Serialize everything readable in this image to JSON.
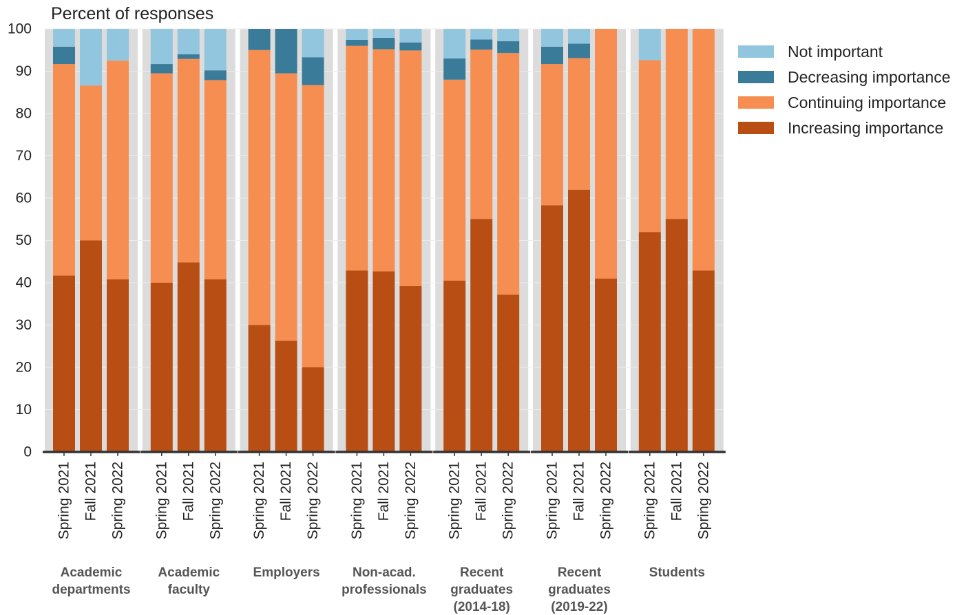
{
  "chart_data": {
    "type": "bar",
    "stacked": true,
    "ylabel": "Percent of responses",
    "ylim": [
      0,
      100
    ],
    "yticks": [
      0,
      10,
      20,
      30,
      40,
      50,
      60,
      70,
      80,
      90,
      100
    ],
    "grid": true,
    "legend_position": "top-right",
    "series": [
      {
        "name": "Not important",
        "color": "#92c5de"
      },
      {
        "name": "Decreasing importance",
        "color": "#3b7b9a"
      },
      {
        "name": "Continuing importance",
        "color": "#f68e51"
      },
      {
        "name": "Increasing importance",
        "color": "#b94e14"
      }
    ],
    "groups": [
      {
        "label": [
          "Academic",
          "departments"
        ],
        "bars": [
          {
            "label": "Spring 2021",
            "values": {
              "Increasing importance": 41.7,
              "Continuing importance": 50.0,
              "Decreasing importance": 4.1,
              "Not important": 4.2
            }
          },
          {
            "label": "Fall 2021",
            "values": {
              "Increasing importance": 50.0,
              "Continuing importance": 36.6,
              "Decreasing importance": 0,
              "Not important": 13.4
            }
          },
          {
            "label": "Spring 2022",
            "values": {
              "Increasing importance": 40.8,
              "Continuing importance": 51.7,
              "Decreasing importance": 0,
              "Not important": 7.5
            }
          }
        ]
      },
      {
        "label": [
          "Academic",
          "faculty"
        ],
        "bars": [
          {
            "label": "Spring 2021",
            "values": {
              "Increasing importance": 40.0,
              "Continuing importance": 49.5,
              "Decreasing importance": 2.2,
              "Not important": 8.3
            }
          },
          {
            "label": "Fall 2021",
            "values": {
              "Increasing importance": 44.8,
              "Continuing importance": 48.1,
              "Decreasing importance": 1.1,
              "Not important": 6.0
            }
          },
          {
            "label": "Spring 2022",
            "values": {
              "Increasing importance": 40.8,
              "Continuing importance": 47.1,
              "Decreasing importance": 2.3,
              "Not important": 9.8
            }
          }
        ]
      },
      {
        "label": [
          "Employers"
        ],
        "bars": [
          {
            "label": "Spring 2021",
            "values": {
              "Increasing importance": 30.0,
              "Continuing importance": 65.0,
              "Decreasing importance": 5.0,
              "Not important": 0
            }
          },
          {
            "label": "Fall 2021",
            "values": {
              "Increasing importance": 26.3,
              "Continuing importance": 63.2,
              "Decreasing importance": 10.5,
              "Not important": 0
            }
          },
          {
            "label": "Spring 2022",
            "values": {
              "Increasing importance": 20.0,
              "Continuing importance": 66.7,
              "Decreasing importance": 6.6,
              "Not important": 6.7
            }
          }
        ]
      },
      {
        "label": [
          "Non-acad.",
          "professionals"
        ],
        "bars": [
          {
            "label": "Spring 2021",
            "values": {
              "Increasing importance": 42.9,
              "Continuing importance": 53.1,
              "Decreasing importance": 1.4,
              "Not important": 2.6
            }
          },
          {
            "label": "Fall 2021",
            "values": {
              "Increasing importance": 42.7,
              "Continuing importance": 52.5,
              "Decreasing importance": 2.7,
              "Not important": 2.1
            }
          },
          {
            "label": "Spring 2022",
            "values": {
              "Increasing importance": 39.2,
              "Continuing importance": 55.7,
              "Decreasing importance": 1.9,
              "Not important": 3.2
            }
          }
        ]
      },
      {
        "label": [
          "Recent",
          "graduates",
          "(2014-18)"
        ],
        "bars": [
          {
            "label": "Spring 2021",
            "values": {
              "Increasing importance": 40.5,
              "Continuing importance": 47.5,
              "Decreasing importance": 5.0,
              "Not important": 7.0
            }
          },
          {
            "label": "Fall 2021",
            "values": {
              "Increasing importance": 55.1,
              "Continuing importance": 40.0,
              "Decreasing importance": 2.4,
              "Not important": 2.5
            }
          },
          {
            "label": "Spring 2022",
            "values": {
              "Increasing importance": 37.2,
              "Continuing importance": 57.1,
              "Decreasing importance": 2.8,
              "Not important": 2.9
            }
          }
        ]
      },
      {
        "label": [
          "Recent",
          "graduates",
          "(2019-22)"
        ],
        "bars": [
          {
            "label": "Spring 2021",
            "values": {
              "Increasing importance": 58.3,
              "Continuing importance": 33.4,
              "Decreasing importance": 4.1,
              "Not important": 4.2
            }
          },
          {
            "label": "Fall 2021",
            "values": {
              "Increasing importance": 62.0,
              "Continuing importance": 31.1,
              "Decreasing importance": 3.4,
              "Not important": 3.5
            }
          },
          {
            "label": "Spring 2022",
            "values": {
              "Increasing importance": 41.0,
              "Continuing importance": 59.0,
              "Decreasing importance": 0,
              "Not important": 0
            }
          }
        ]
      },
      {
        "label": [
          "Students"
        ],
        "bars": [
          {
            "label": "Spring 2021",
            "values": {
              "Increasing importance": 52.0,
              "Continuing importance": 40.6,
              "Decreasing importance": 0,
              "Not important": 7.4
            }
          },
          {
            "label": "Fall 2021",
            "values": {
              "Increasing importance": 55.1,
              "Continuing importance": 44.9,
              "Decreasing importance": 0,
              "Not important": 0
            }
          },
          {
            "label": "Spring 2022",
            "values": {
              "Increasing importance": 42.9,
              "Continuing importance": 57.1,
              "Decreasing importance": 0,
              "Not important": 0
            }
          }
        ]
      }
    ]
  }
}
